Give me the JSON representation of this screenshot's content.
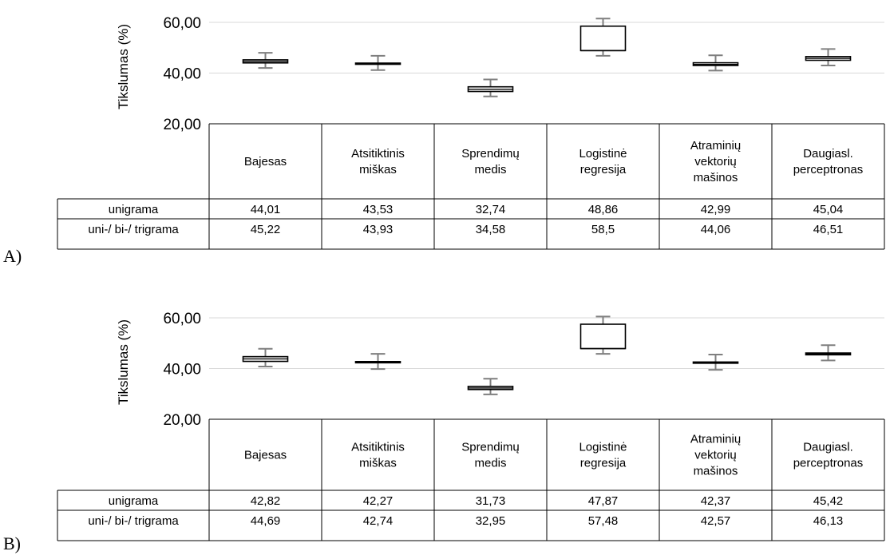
{
  "chart_data": [
    {
      "type": "boxplot",
      "panel_label": "A)",
      "ylabel": "Tikslumas (%)",
      "yticks": [
        "20,00",
        "40,00",
        "60,00"
      ],
      "ylim": [
        20,
        60
      ],
      "grid": true,
      "categories": [
        "Bajesas",
        "Atsitiktinis miškas",
        "Sprendimų medis",
        "Logistinė regresija",
        "Atraminių vektorių mašinos",
        "Daugiasl. perceptronas"
      ],
      "boxes": [
        {
          "whisker_low": 42.0,
          "q1": 44.01,
          "median": 44.6,
          "q3": 45.22,
          "whisker_high": 48.0
        },
        {
          "whisker_low": 41.2,
          "q1": 43.53,
          "median": 43.7,
          "q3": 43.93,
          "whisker_high": 46.8
        },
        {
          "whisker_low": 30.8,
          "q1": 32.74,
          "median": 33.6,
          "q3": 34.58,
          "whisker_high": 37.5
        },
        {
          "whisker_low": 46.8,
          "q1": 48.86,
          "median": 48.86,
          "q3": 58.5,
          "whisker_high": 61.5
        },
        {
          "whisker_low": 41.0,
          "q1": 42.99,
          "median": 43.4,
          "q3": 44.06,
          "whisker_high": 47.0
        },
        {
          "whisker_low": 43.0,
          "q1": 45.04,
          "median": 45.8,
          "q3": 46.51,
          "whisker_high": 49.5
        }
      ],
      "table": {
        "rows": [
          {
            "name": "unigrama",
            "values": [
              "44,01",
              "43,53",
              "32,74",
              "48,86",
              "42,99",
              "45,04"
            ]
          },
          {
            "name": "uni-/ bi-/ trigrama",
            "values": [
              "45,22",
              "43,93",
              "34,58",
              "58,5",
              "44,06",
              "46,51"
            ]
          }
        ]
      }
    },
    {
      "type": "boxplot",
      "panel_label": "B)",
      "ylabel": "Tikslumas (%)",
      "yticks": [
        "20,00",
        "40,00",
        "60,00"
      ],
      "ylim": [
        20,
        60
      ],
      "grid": true,
      "categories": [
        "Bajesas",
        "Atsitiktinis miškas",
        "Sprendimų medis",
        "Logistinė regresija",
        "Atraminių vektorių mašinos",
        "Daugiasl. perceptronas"
      ],
      "boxes": [
        {
          "whisker_low": 40.8,
          "q1": 42.82,
          "median": 43.8,
          "q3": 44.69,
          "whisker_high": 47.8
        },
        {
          "whisker_low": 39.8,
          "q1": 42.27,
          "median": 42.5,
          "q3": 42.74,
          "whisker_high": 45.8
        },
        {
          "whisker_low": 29.8,
          "q1": 31.73,
          "median": 32.3,
          "q3": 32.95,
          "whisker_high": 36.0
        },
        {
          "whisker_low": 45.8,
          "q1": 47.87,
          "median": 47.87,
          "q3": 57.48,
          "whisker_high": 60.5
        },
        {
          "whisker_low": 39.5,
          "q1": 42.37,
          "median": 42.47,
          "q3": 42.57,
          "whisker_high": 45.5
        },
        {
          "whisker_low": 43.2,
          "q1": 45.42,
          "median": 45.8,
          "q3": 46.13,
          "whisker_high": 49.2
        }
      ],
      "table": {
        "rows": [
          {
            "name": "unigrama",
            "values": [
              "42,82",
              "42,27",
              "31,73",
              "47,87",
              "42,37",
              "45,42"
            ]
          },
          {
            "name": "uni-/ bi-/ trigrama",
            "values": [
              "44,69",
              "42,74",
              "32,95",
              "57,48",
              "42,57",
              "46,13"
            ]
          }
        ]
      }
    }
  ]
}
